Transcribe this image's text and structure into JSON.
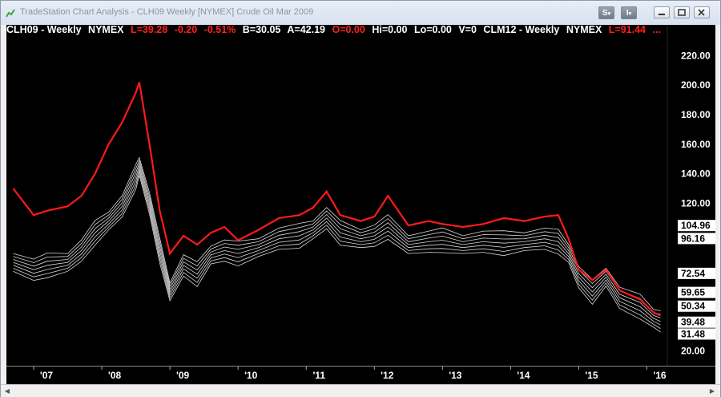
{
  "window": {
    "title": "TradeStation Chart Analysis - CLH09 Weekly [NYMEX] Crude Oil Mar 2009"
  },
  "toolbar": {
    "s_label": "S",
    "i_label": "I"
  },
  "header": {
    "symbol": "CLH09 - Weekly",
    "exchange": "NYMEX",
    "last": "L=39.28",
    "change": "-0.20",
    "pct": "-0.51%",
    "bid": "B=30.05",
    "ask": "A=42.19",
    "open": "O=0.00",
    "high": "Hi=0.00",
    "low": "Lo=0.00",
    "volume": "V=0",
    "symbol2": "CLM12 - Weekly",
    "exchange2": "NYMEX",
    "last2": "L=91.44",
    "more": "..."
  },
  "axis": {
    "y_ticks": [
      "220.00",
      "200.00",
      "180.00",
      "160.00",
      "140.00",
      "120.00",
      "20.00"
    ],
    "y_price_labels": [
      "104.96",
      "96.16",
      "72.54",
      "59.65",
      "50.34",
      "39.48",
      "31.48"
    ],
    "x_ticks": [
      "'07",
      "'08",
      "'09",
      "'10",
      "'11",
      "'12",
      "'13",
      "'14",
      "'15",
      "'16"
    ]
  },
  "colors": {
    "background": "#000000",
    "red_series": "#ff1a1a",
    "white_series": "#ffffff"
  },
  "chart_data": {
    "type": "line",
    "x_ticks": [
      "'07",
      "'08",
      "'09",
      "'10",
      "'11",
      "'12",
      "'13",
      "'14",
      "'15",
      "'16"
    ],
    "ylim": [
      10,
      230
    ],
    "series": [
      {
        "name": "CLM12 - Weekly",
        "color": "#ff1a1a",
        "x": [
          2006.7,
          2007.0,
          2007.2,
          2007.5,
          2007.7,
          2007.9,
          2008.1,
          2008.3,
          2008.5,
          2008.55,
          2008.7,
          2008.85,
          2009.0,
          2009.2,
          2009.4,
          2009.6,
          2009.8,
          2010.0,
          2010.3,
          2010.6,
          2010.9,
          2011.1,
          2011.3,
          2011.5,
          2011.8,
          2012.0,
          2012.2,
          2012.5,
          2012.8,
          2013.0,
          2013.3,
          2013.6,
          2013.9,
          2014.2,
          2014.5,
          2014.7,
          2014.85,
          2015.0,
          2015.2,
          2015.4,
          2015.6,
          2015.9,
          2016.1,
          2016.2
        ],
        "y": [
          130,
          112,
          115,
          118,
          125,
          140,
          160,
          175,
          195,
          202,
          160,
          115,
          86,
          98,
          92,
          100,
          104,
          95,
          102,
          110,
          112,
          117,
          128,
          112,
          108,
          111,
          125,
          105,
          108,
          106,
          104,
          106,
          110,
          108,
          111,
          112,
          96,
          75,
          68,
          75,
          61,
          55,
          46,
          44
        ]
      },
      {
        "name": "CLH09 - Weekly",
        "color": "#ffffff",
        "x": [
          2006.7,
          2007.0,
          2007.2,
          2007.5,
          2007.7,
          2007.9,
          2008.1,
          2008.3,
          2008.5,
          2008.55,
          2008.7,
          2008.85,
          2009.0,
          2009.2,
          2009.4,
          2009.6,
          2009.8,
          2010.0,
          2010.3,
          2010.6,
          2010.9,
          2011.1,
          2011.3,
          2011.5,
          2011.8,
          2012.0,
          2012.2,
          2012.5,
          2012.8,
          2013.0,
          2013.3,
          2013.6,
          2013.9,
          2014.2,
          2014.5,
          2014.7,
          2014.85,
          2015.0,
          2015.2,
          2015.4,
          2015.6,
          2015.9,
          2016.1,
          2016.2
        ],
        "y": [
          80,
          75,
          78,
          80,
          88,
          100,
          108,
          118,
          138,
          145,
          120,
          88,
          60,
          78,
          72,
          85,
          88,
          86,
          90,
          96,
          98,
          102,
          110,
          100,
          96,
          98,
          104,
          92,
          94,
          95,
          92,
          94,
          93,
          94,
          96,
          94,
          86,
          70,
          60,
          70,
          56,
          50,
          42,
          40
        ]
      }
    ]
  }
}
